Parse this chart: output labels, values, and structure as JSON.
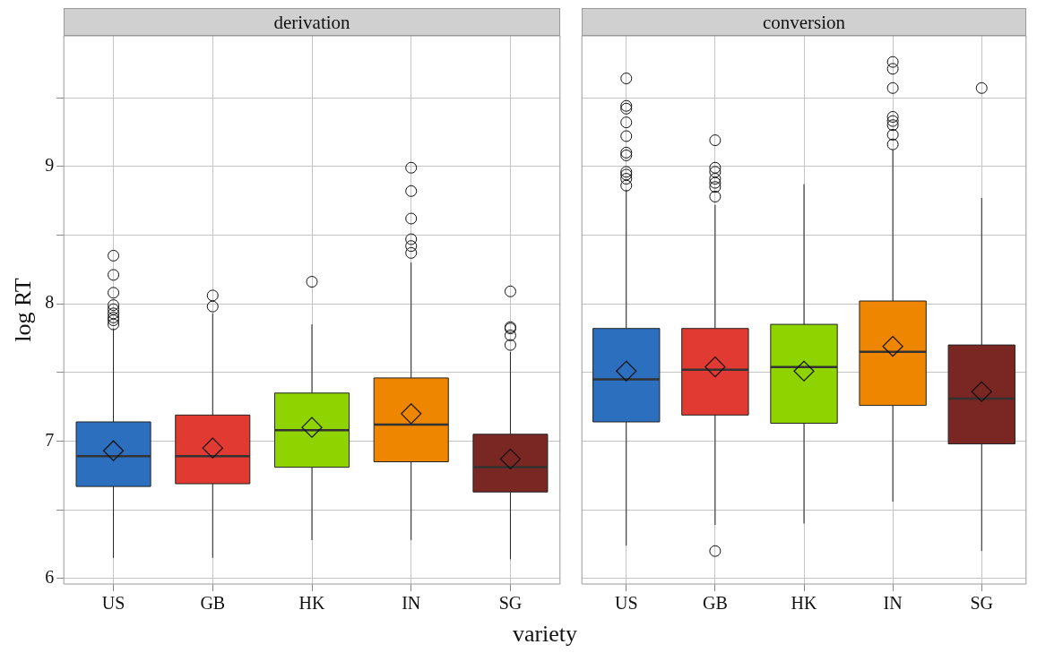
{
  "chart_data": [
    {
      "type": "box",
      "title": "derivation",
      "xlabel": "variety",
      "ylabel": "log RT",
      "categories": [
        "US",
        "GB",
        "HK",
        "IN",
        "SG"
      ],
      "colors": [
        "#2c6fbf",
        "#e03a33",
        "#8fd400",
        "#ee8600",
        "#7a2622"
      ],
      "boxes": [
        {
          "low": 6.15,
          "q1": 6.67,
          "median": 6.89,
          "q3": 7.14,
          "high": 7.82,
          "mean": 6.93,
          "outliers": [
            8.35,
            8.21,
            8.08,
            7.99,
            7.96,
            7.93,
            7.9,
            7.88,
            7.85
          ]
        },
        {
          "low": 6.15,
          "q1": 6.69,
          "median": 6.89,
          "q3": 7.19,
          "high": 7.93,
          "mean": 6.95,
          "outliers": [
            8.06,
            7.98
          ]
        },
        {
          "low": 6.28,
          "q1": 6.81,
          "median": 7.08,
          "q3": 7.35,
          "high": 7.85,
          "mean": 7.1,
          "outliers": [
            8.16
          ]
        },
        {
          "low": 6.28,
          "q1": 6.85,
          "median": 7.12,
          "q3": 7.46,
          "high": 8.3,
          "mean": 7.2,
          "outliers": [
            8.99,
            8.82,
            8.62,
            8.47,
            8.42,
            8.37
          ]
        },
        {
          "low": 6.14,
          "q1": 6.63,
          "median": 6.81,
          "q3": 7.05,
          "high": 7.65,
          "mean": 6.87,
          "outliers": [
            8.09,
            7.83,
            7.82,
            7.77,
            7.7
          ]
        }
      ],
      "ylim": [
        5.96,
        9.95
      ],
      "yticks": [
        6,
        {
          "value": 6.5,
          "label": null
        },
        7,
        {
          "value": 7.5,
          "label": null
        },
        8,
        {
          "value": 8.5,
          "label": null
        },
        9,
        {
          "value": 9.5,
          "label": null
        }
      ],
      "grid": true
    },
    {
      "type": "box",
      "title": "conversion",
      "categories": [
        "US",
        "GB",
        "HK",
        "IN",
        "SG"
      ],
      "colors": [
        "#2c6fbf",
        "#e03a33",
        "#8fd400",
        "#ee8600",
        "#7a2622"
      ],
      "boxes": [
        {
          "low": 6.24,
          "q1": 7.14,
          "median": 7.45,
          "q3": 7.82,
          "high": 8.83,
          "mean": 7.51,
          "outliers": [
            9.64,
            9.44,
            9.42,
            9.32,
            9.22,
            9.1,
            9.08,
            8.96,
            8.94,
            8.91,
            8.86
          ]
        },
        {
          "low": 6.39,
          "q1": 7.19,
          "median": 7.52,
          "q3": 7.82,
          "high": 8.72,
          "mean": 7.54,
          "outliers": [
            9.19,
            8.99,
            8.96,
            8.91,
            8.88,
            8.85,
            8.78,
            6.2
          ]
        },
        {
          "low": 6.4,
          "q1": 7.13,
          "median": 7.54,
          "q3": 7.85,
          "high": 8.87,
          "mean": 7.51
        },
        {
          "low": 6.56,
          "q1": 7.26,
          "median": 7.65,
          "q3": 8.02,
          "high": 9.12,
          "mean": 7.69,
          "outliers": [
            9.76,
            9.71,
            9.57,
            9.36,
            9.33,
            9.3,
            9.23,
            9.16
          ]
        },
        {
          "low": 6.2,
          "q1": 6.98,
          "median": 7.31,
          "q3": 7.7,
          "high": 8.77,
          "mean": 7.36,
          "outliers": [
            9.57
          ]
        }
      ],
      "ylim": [
        5.96,
        9.95
      ],
      "yticks": [
        6,
        {
          "value": 6.5,
          "label": null
        },
        7,
        {
          "value": 7.5,
          "label": null
        },
        8,
        {
          "value": 8.5,
          "label": null
        },
        9,
        {
          "value": 9.5,
          "label": null
        }
      ],
      "grid": true,
      "tick_labels": "x"
    }
  ]
}
